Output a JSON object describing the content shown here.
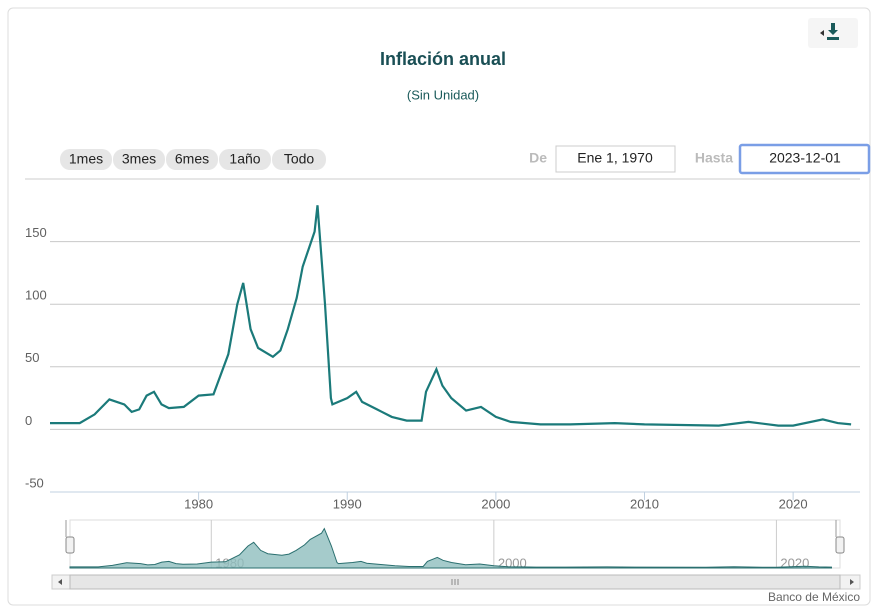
{
  "chart_data": {
    "type": "line",
    "title": "Inflación anual",
    "subtitle": "(Sin Unidad)",
    "credit": "Banco de México",
    "range_buttons": [
      "1mes",
      "3mes",
      "6mes",
      "1año",
      "Todo"
    ],
    "from_label": "De",
    "from_value": "Ene 1, 1970",
    "to_label": "Hasta",
    "to_value": "2023-12-01",
    "color": "#1b7a7a",
    "x": [
      1970,
      1971,
      1972,
      1973,
      1974,
      1975,
      1975.5,
      1976,
      1976.5,
      1977,
      1977.5,
      1978,
      1979,
      1980,
      1981,
      1982,
      1982.6,
      1983,
      1983.5,
      1984,
      1985,
      1985.5,
      1986,
      1986.6,
      1987,
      1987.8,
      1988,
      1988.5,
      1988.9,
      1989,
      1990,
      1990.6,
      1991,
      1992,
      1993,
      1994,
      1995,
      1995.3,
      1996,
      1996.4,
      1997,
      1998,
      1999,
      2000,
      2001,
      2002,
      2003,
      2005,
      2008,
      2010,
      2015,
      2017,
      2019,
      2020,
      2022,
      2023,
      2023.9
    ],
    "values": [
      5,
      5,
      5,
      12,
      24,
      20,
      14,
      16,
      27,
      30,
      20,
      17,
      18,
      27,
      28,
      60,
      100,
      117,
      80,
      65,
      58,
      63,
      80,
      105,
      130,
      158,
      179,
      100,
      25,
      20,
      25,
      30,
      22,
      16,
      10,
      7,
      7,
      30,
      48,
      35,
      25,
      15,
      18,
      10,
      6,
      5,
      4,
      4,
      5,
      4,
      3,
      6,
      3,
      3,
      8,
      5,
      4
    ],
    "xlim": [
      1970,
      2024.5
    ],
    "ylim": [
      -50,
      200
    ],
    "xticks": [
      1980,
      1990,
      2000,
      2010,
      2020
    ],
    "yticks": [
      -50,
      0,
      50,
      100,
      150
    ],
    "grid": true
  }
}
